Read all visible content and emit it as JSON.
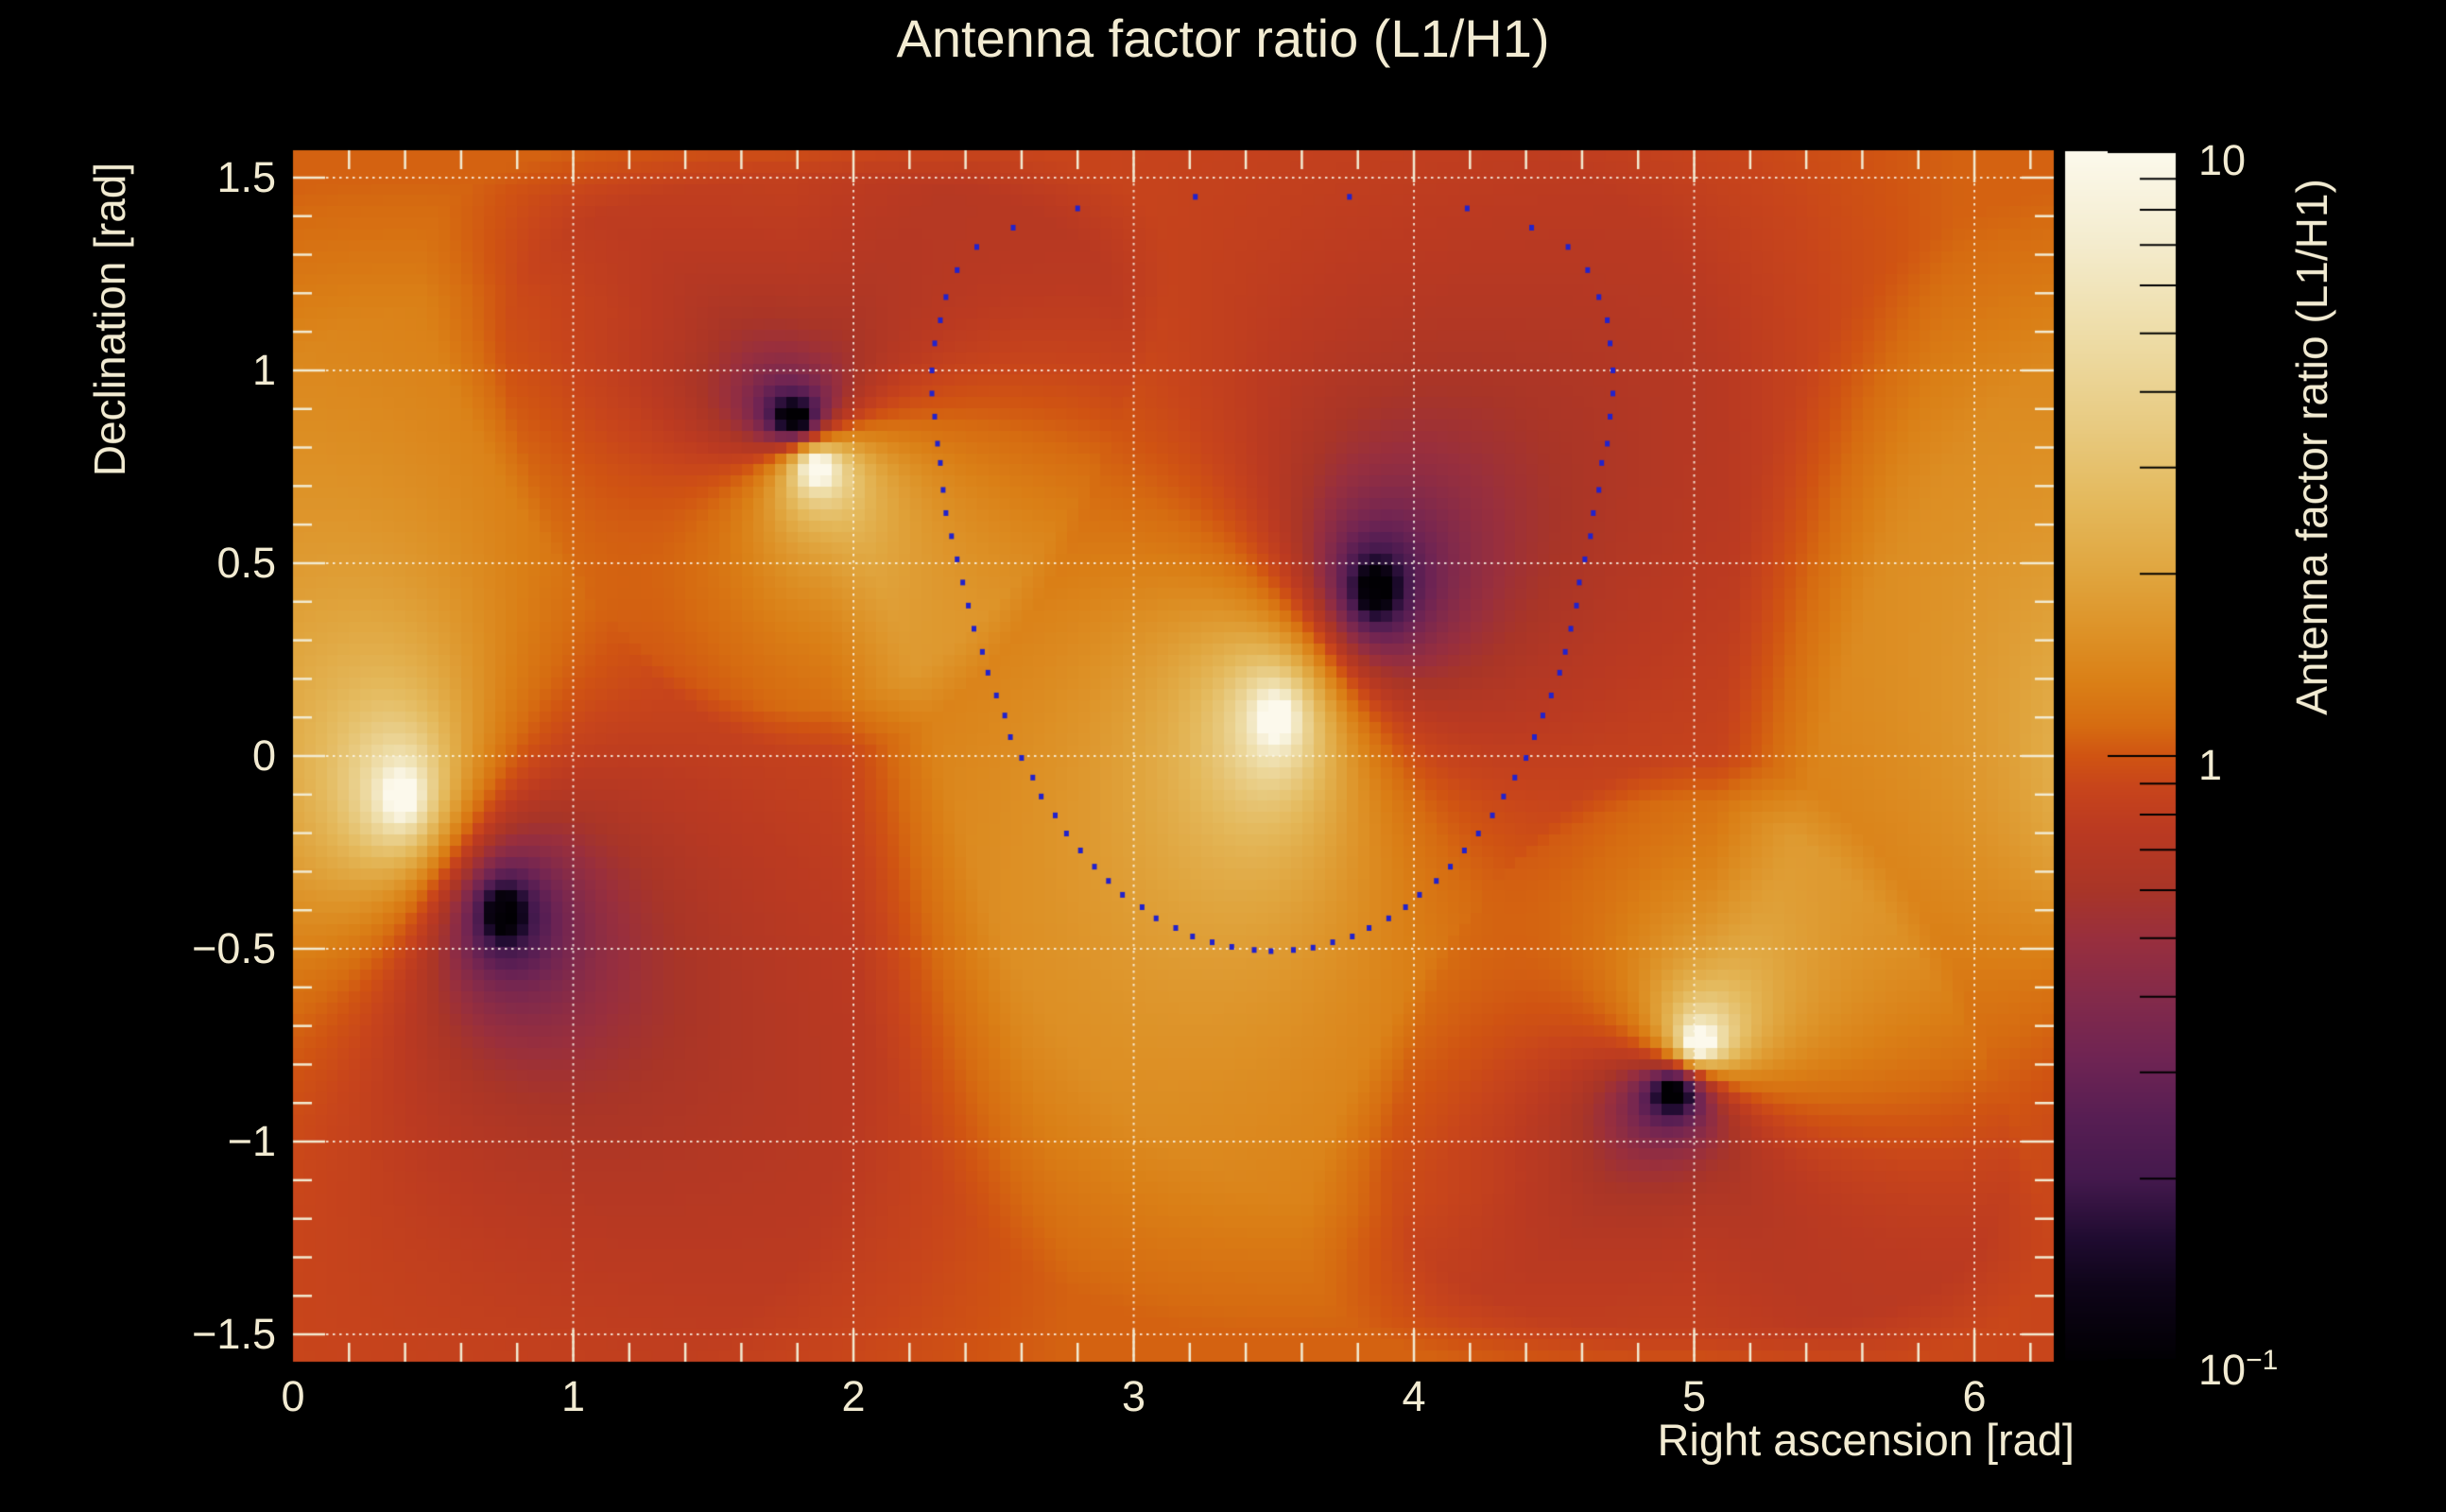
{
  "figure": {
    "title": "Antenna factor ratio (L1/H1)",
    "background_color": "#000000",
    "text_color": "#f2ebd2"
  },
  "axes": {
    "x": {
      "title": "Right ascension [rad]",
      "min": 0,
      "max": 6.2832,
      "major_ticks": [
        0,
        1,
        2,
        3,
        4,
        5,
        6
      ],
      "tick_labels": [
        "0",
        "1",
        "2",
        "3",
        "4",
        "5",
        "6"
      ],
      "minor_step": 0.2
    },
    "y": {
      "title": "Declination [rad]",
      "min": -1.5708,
      "max": 1.5708,
      "major_ticks": [
        1.5,
        1,
        0.5,
        0,
        -0.5,
        -1,
        -1.5
      ],
      "tick_labels": [
        "1.5",
        "1",
        "0.5",
        "0",
        "−0.5",
        "−1",
        "−1.5"
      ],
      "minor_step": 0.1
    },
    "grid": {
      "style": "dotted",
      "color": "rgba(252,248,235,0.85)"
    },
    "tick_color": "#f2ebd2"
  },
  "colorbar": {
    "title": "Antenna factor ratio (L1/H1)",
    "scale": "log",
    "min": 0.1,
    "max": 10,
    "major_tick_values": [
      10,
      1,
      0.1
    ],
    "labels": [
      {
        "base": "10",
        "exp": ""
      },
      {
        "base": "1",
        "exp": ""
      },
      {
        "base": "10",
        "exp": "−1"
      }
    ],
    "tick_color": "#000000"
  },
  "chart_data": {
    "type": "heatmap",
    "title": "Antenna factor ratio (L1/H1)",
    "xlabel": "Right ascension [rad]",
    "ylabel": "Declination [rad]",
    "zlabel": "Antenna factor ratio (L1/H1)",
    "x_range": [
      0,
      6.2832
    ],
    "y_range": [
      -1.5708,
      1.5708
    ],
    "z_scale": "log",
    "z_range": [
      0.1,
      10
    ],
    "background_ratio_log10": 0.03,
    "grid_bins_x": 157,
    "grid_bins_y": 108,
    "features": [
      {
        "kind": "maximum",
        "ra": 0.39,
        "dec": -0.105,
        "ratio": ">10",
        "halo_radius": 1.6,
        "core_radius": 0.045,
        "weight": 1.0
      },
      {
        "kind": "minimum",
        "ra": 0.75,
        "dec": -0.405,
        "ratio": "<0.1",
        "halo_radius": 1.6,
        "core_radius": 0.045,
        "weight": 1.0
      },
      {
        "kind": "minimum",
        "ra": 1.79,
        "dec": 0.875,
        "ratio": "<0.1",
        "halo_radius": 0.75,
        "core_radius": 0.025,
        "weight": 1.4
      },
      {
        "kind": "maximum",
        "ra": 1.87,
        "dec": 0.748,
        "ratio": ">10",
        "halo_radius": 0.75,
        "core_radius": 0.025,
        "weight": 1.4
      },
      {
        "kind": "maximum",
        "ra": 3.51,
        "dec": 0.1,
        "ratio": ">10",
        "halo_radius": 1.6,
        "core_radius": 0.045,
        "weight": 1.0
      },
      {
        "kind": "minimum",
        "ra": 3.86,
        "dec": 0.43,
        "ratio": "<0.1",
        "halo_radius": 1.6,
        "core_radius": 0.045,
        "weight": 1.0
      },
      {
        "kind": "maximum",
        "ra": 5.02,
        "dec": -0.743,
        "ratio": ">10",
        "halo_radius": 0.75,
        "core_radius": 0.025,
        "weight": 1.4
      },
      {
        "kind": "minimum",
        "ra": 4.93,
        "dec": -0.87,
        "ratio": "<0.1",
        "halo_radius": 0.75,
        "core_radius": 0.025,
        "weight": 1.4
      }
    ],
    "colormap_stops": [
      [
        -1.0,
        "#010003"
      ],
      [
        -0.88,
        "#0e0418"
      ],
      [
        -0.8,
        "#1f0b30"
      ],
      [
        -0.7,
        "#44194d"
      ],
      [
        -0.6,
        "#571e53"
      ],
      [
        -0.5,
        "#6f2453"
      ],
      [
        -0.4,
        "#832a4a"
      ],
      [
        -0.3,
        "#992f3d"
      ],
      [
        -0.22,
        "#a93527"
      ],
      [
        -0.12,
        "#bb3a21"
      ],
      [
        -0.05,
        "#c8451b"
      ],
      [
        0.0,
        "#d05412"
      ],
      [
        0.05,
        "#d66c11"
      ],
      [
        0.12,
        "#da7f16"
      ],
      [
        0.2,
        "#dd9126"
      ],
      [
        0.3,
        "#e0a53e"
      ],
      [
        0.42,
        "#e4b95c"
      ],
      [
        0.55,
        "#e8cb82"
      ],
      [
        0.7,
        "#eedda8"
      ],
      [
        0.85,
        "#f4ecce"
      ],
      [
        1.0,
        "#fcf9ec"
      ]
    ],
    "contour_color": "#2222cc",
    "contour_points": [
      [
        2.8,
        1.42
      ],
      [
        2.57,
        1.37
      ],
      [
        2.44,
        1.32
      ],
      [
        2.37,
        1.26
      ],
      [
        2.33,
        1.19
      ],
      [
        2.31,
        1.13
      ],
      [
        2.29,
        1.07
      ],
      [
        2.28,
        1.0
      ],
      [
        2.28,
        0.94
      ],
      [
        2.29,
        0.88
      ],
      [
        2.3,
        0.81
      ],
      [
        2.31,
        0.76
      ],
      [
        2.32,
        0.69
      ],
      [
        2.33,
        0.63
      ],
      [
        2.35,
        0.57
      ],
      [
        2.37,
        0.51
      ],
      [
        2.39,
        0.45
      ],
      [
        2.41,
        0.39
      ],
      [
        2.43,
        0.33
      ],
      [
        2.46,
        0.27
      ],
      [
        2.48,
        0.216
      ],
      [
        2.51,
        0.157
      ],
      [
        2.54,
        0.105
      ],
      [
        2.56,
        0.049
      ],
      [
        2.6,
        -0.005
      ],
      [
        2.64,
        -0.056
      ],
      [
        2.67,
        -0.105
      ],
      [
        2.72,
        -0.154
      ],
      [
        2.76,
        -0.201
      ],
      [
        2.81,
        -0.245
      ],
      [
        2.86,
        -0.287
      ],
      [
        2.91,
        -0.324
      ],
      [
        2.96,
        -0.36
      ],
      [
        3.03,
        -0.392
      ],
      [
        3.08,
        -0.421
      ],
      [
        3.15,
        -0.446
      ],
      [
        3.21,
        -0.468
      ],
      [
        3.28,
        -0.483
      ],
      [
        3.35,
        -0.495
      ],
      [
        3.43,
        -0.503
      ],
      [
        3.49,
        -0.506
      ],
      [
        3.57,
        -0.503
      ],
      [
        3.64,
        -0.497
      ],
      [
        3.71,
        -0.483
      ],
      [
        3.78,
        -0.468
      ],
      [
        3.84,
        -0.446
      ],
      [
        3.91,
        -0.421
      ],
      [
        3.97,
        -0.392
      ],
      [
        4.02,
        -0.36
      ],
      [
        4.08,
        -0.324
      ],
      [
        4.13,
        -0.287
      ],
      [
        4.18,
        -0.245
      ],
      [
        4.23,
        -0.201
      ],
      [
        4.28,
        -0.154
      ],
      [
        4.32,
        -0.105
      ],
      [
        4.36,
        -0.056
      ],
      [
        4.4,
        -0.005
      ],
      [
        4.43,
        0.049
      ],
      [
        4.46,
        0.105
      ],
      [
        4.49,
        0.157
      ],
      [
        4.52,
        0.216
      ],
      [
        4.54,
        0.27
      ],
      [
        4.56,
        0.33
      ],
      [
        4.58,
        0.39
      ],
      [
        4.59,
        0.45
      ],
      [
        4.61,
        0.51
      ],
      [
        4.63,
        0.57
      ],
      [
        4.64,
        0.63
      ],
      [
        4.66,
        0.69
      ],
      [
        4.67,
        0.76
      ],
      [
        4.69,
        0.81
      ],
      [
        4.7,
        0.88
      ],
      [
        4.71,
        0.94
      ],
      [
        4.71,
        1.0
      ],
      [
        4.7,
        1.07
      ],
      [
        4.69,
        1.13
      ],
      [
        4.66,
        1.19
      ],
      [
        4.62,
        1.26
      ],
      [
        4.55,
        1.32
      ],
      [
        4.42,
        1.37
      ],
      [
        4.19,
        1.42
      ],
      [
        3.77,
        1.45
      ],
      [
        3.22,
        1.45
      ]
    ]
  }
}
